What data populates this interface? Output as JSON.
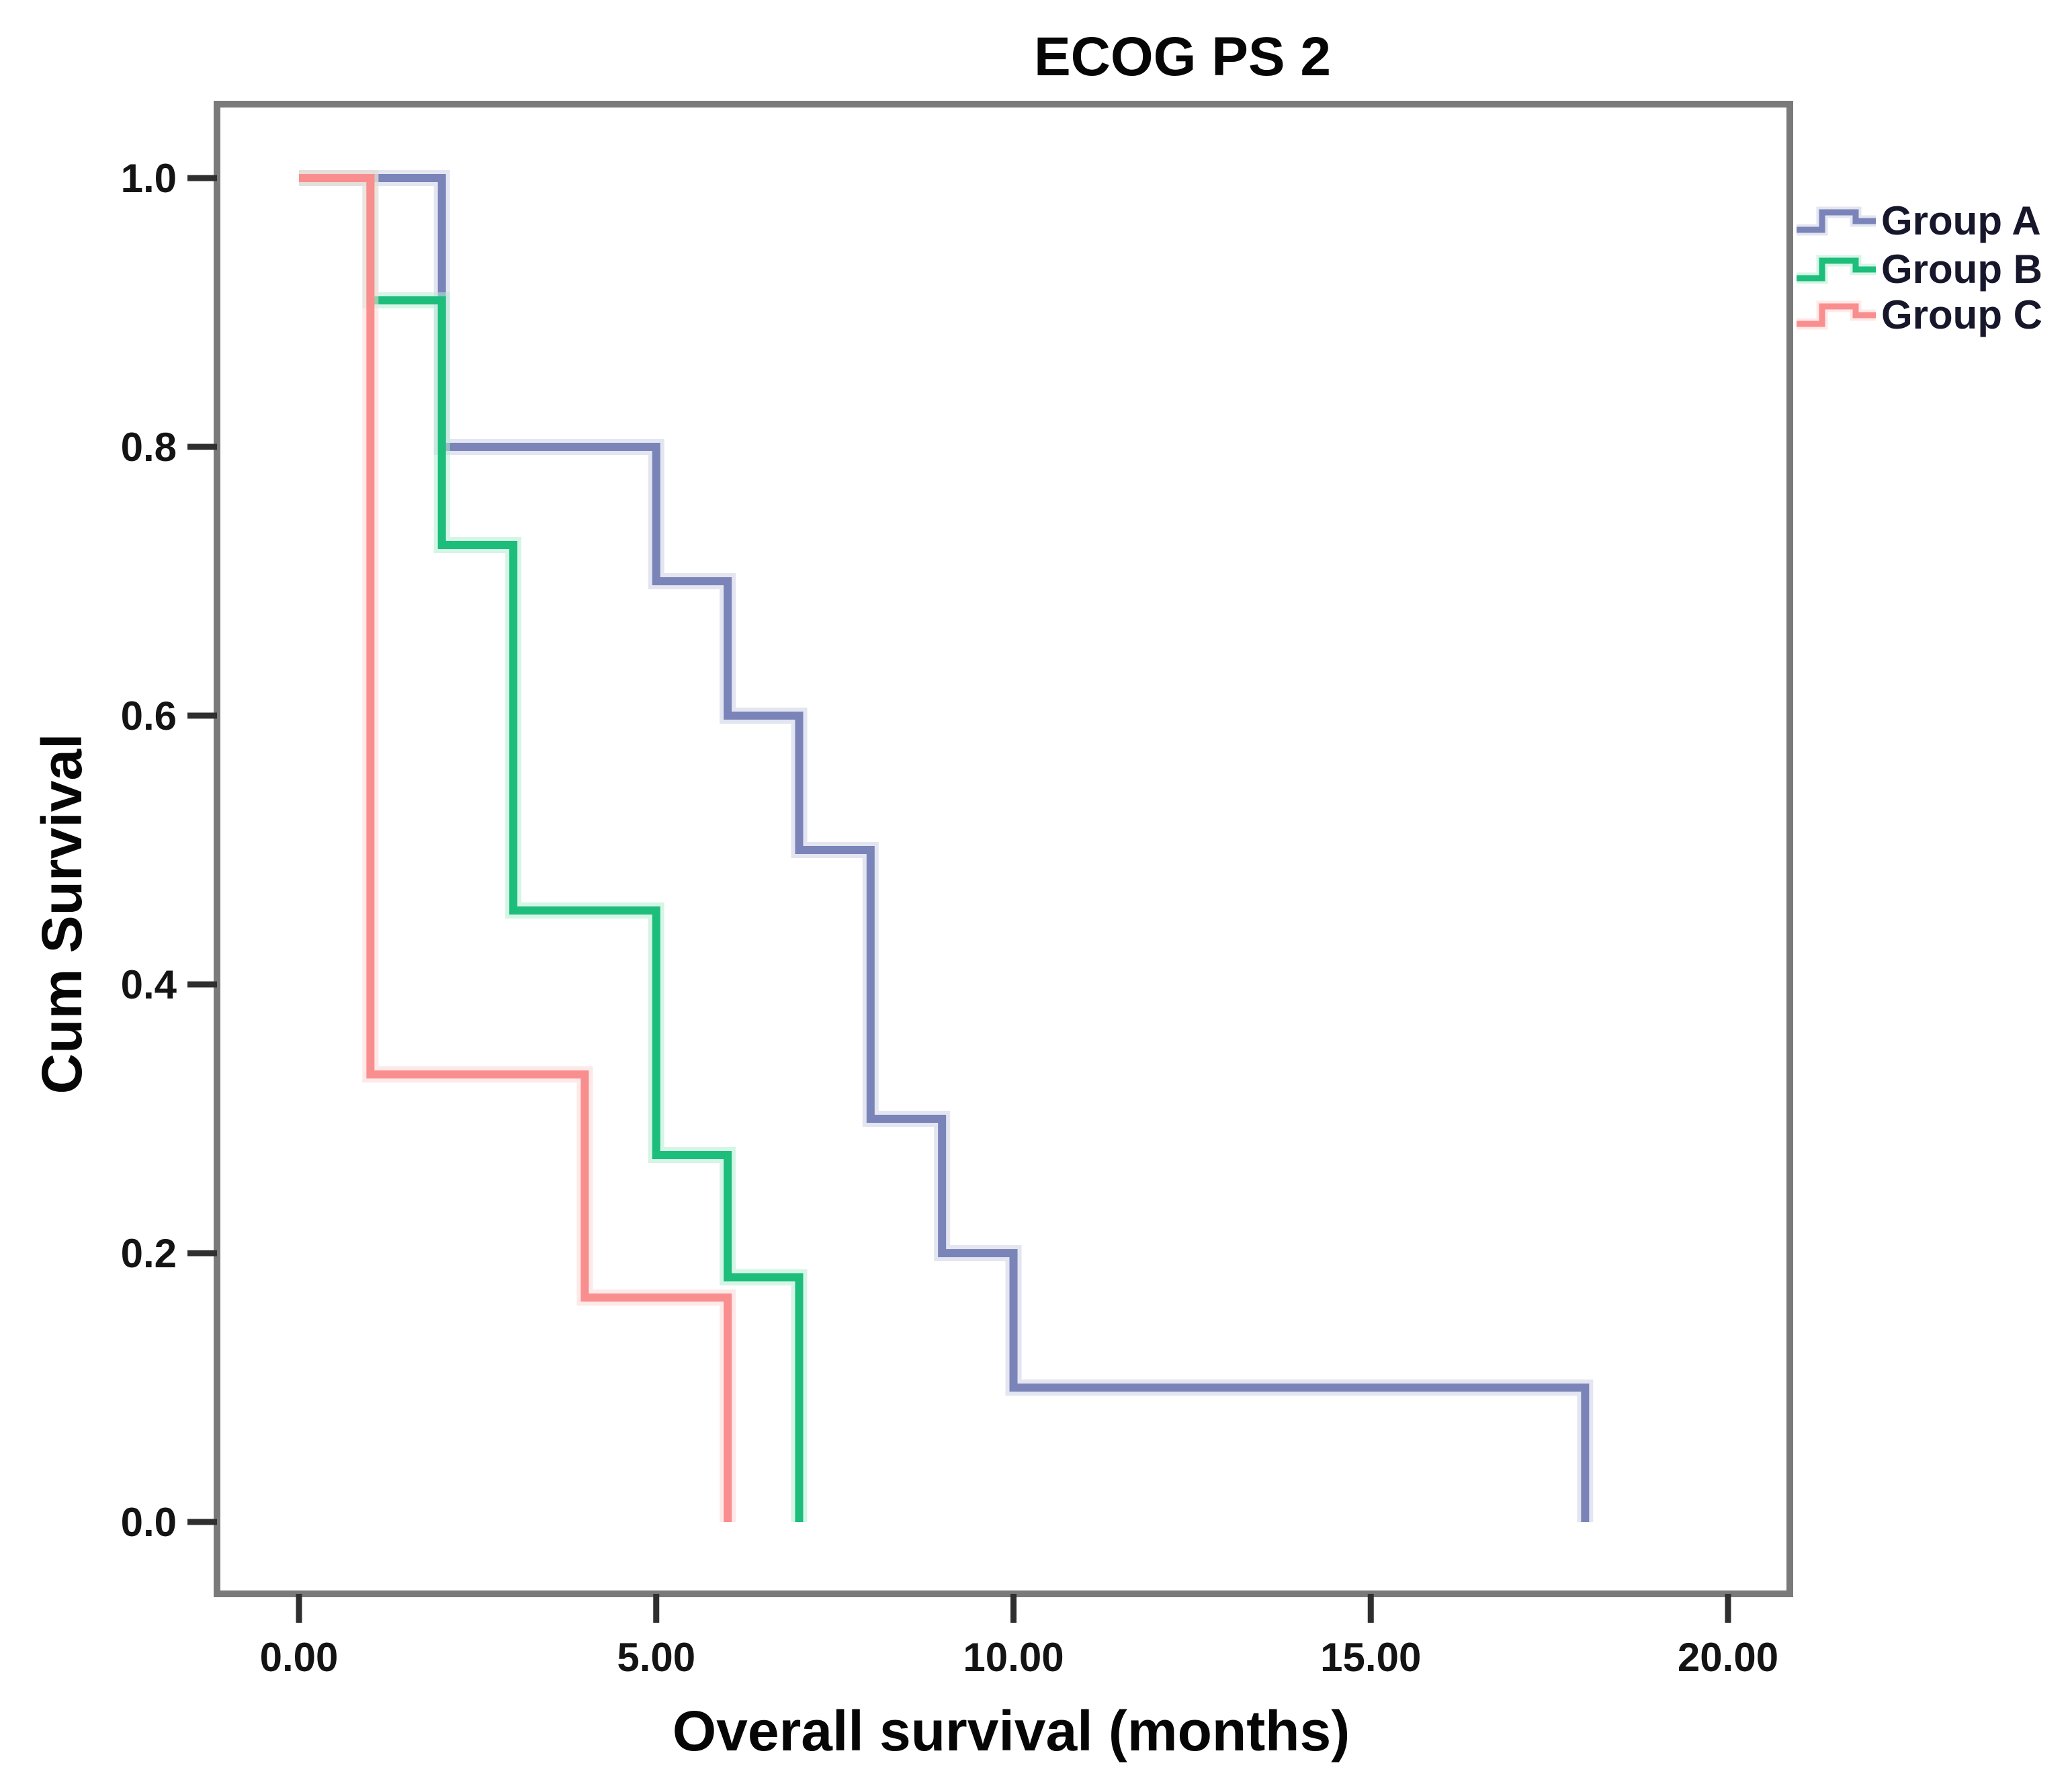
{
  "title": "ECOG PS 2",
  "y_axis": {
    "label": "Cum Survival",
    "tick_labels": [
      "1.0",
      "0.8",
      "0.6",
      "0.4",
      "0.2",
      "0.0"
    ],
    "tick_values": [
      1.0,
      0.8,
      0.6,
      0.4,
      0.2,
      0.0
    ]
  },
  "x_axis": {
    "label": "Overall survival (months)",
    "tick_labels": [
      "0.00",
      "5.00",
      "10.00",
      "15.00",
      "20.00"
    ],
    "tick_values": [
      0,
      5,
      10,
      15,
      20
    ]
  },
  "legend": {
    "items": [
      "Group A",
      "Group B",
      "Group C"
    ]
  },
  "colors": {
    "frame": "#7a7a7a",
    "tick": "#2f2f2f",
    "group_a": "#7a84b8",
    "group_a_halo": "#ccd0e5",
    "group_b": "#1dbd7b",
    "group_b_halo": "#b2ecd3",
    "group_c": "#f98e8e",
    "group_c_halo": "#fdd7d7"
  },
  "chart_data": {
    "type": "line",
    "subtype": "kaplan-meier-step",
    "title": "ECOG PS 2",
    "xlabel": "Overall survival (months)",
    "ylabel": "Cum Survival",
    "xlim": [
      -1.15,
      20.9
    ],
    "ylim": [
      -0.055,
      1.055
    ],
    "x_ticks": [
      0,
      5,
      10,
      15,
      20
    ],
    "y_ticks": [
      0.0,
      0.2,
      0.4,
      0.6,
      0.8,
      1.0
    ],
    "grid": false,
    "legend_position": "outside-right-top",
    "series": [
      {
        "name": "Group A",
        "color": "#7a84b8",
        "halo": "#ccd0e5",
        "points": [
          [
            0,
            1.0
          ],
          [
            2,
            1.0
          ],
          [
            2,
            0.8
          ],
          [
            5,
            0.8
          ],
          [
            5,
            0.7
          ],
          [
            6,
            0.7
          ],
          [
            6,
            0.6
          ],
          [
            7,
            0.6
          ],
          [
            7,
            0.5
          ],
          [
            8,
            0.5
          ],
          [
            8,
            0.3
          ],
          [
            9,
            0.3
          ],
          [
            9,
            0.2
          ],
          [
            10,
            0.2
          ],
          [
            10,
            0.1
          ],
          [
            18,
            0.1
          ],
          [
            18,
            0.0
          ]
        ]
      },
      {
        "name": "Group B",
        "color": "#1dbd7b",
        "halo": "#b2ecd3",
        "points": [
          [
            0,
            1.0
          ],
          [
            1,
            1.0
          ],
          [
            1,
            0.909
          ],
          [
            2,
            0.909
          ],
          [
            2,
            0.727
          ],
          [
            3,
            0.727
          ],
          [
            3,
            0.455
          ],
          [
            5,
            0.455
          ],
          [
            5,
            0.273
          ],
          [
            6,
            0.273
          ],
          [
            6,
            0.182
          ],
          [
            7,
            0.182
          ],
          [
            7,
            0.0
          ]
        ]
      },
      {
        "name": "Group C",
        "color": "#f98e8e",
        "halo": "#fdd7d7",
        "points": [
          [
            0,
            1.0
          ],
          [
            1,
            1.0
          ],
          [
            1,
            0.333
          ],
          [
            4,
            0.333
          ],
          [
            4,
            0.167
          ],
          [
            6,
            0.167
          ],
          [
            6,
            0.0
          ]
        ]
      }
    ]
  }
}
